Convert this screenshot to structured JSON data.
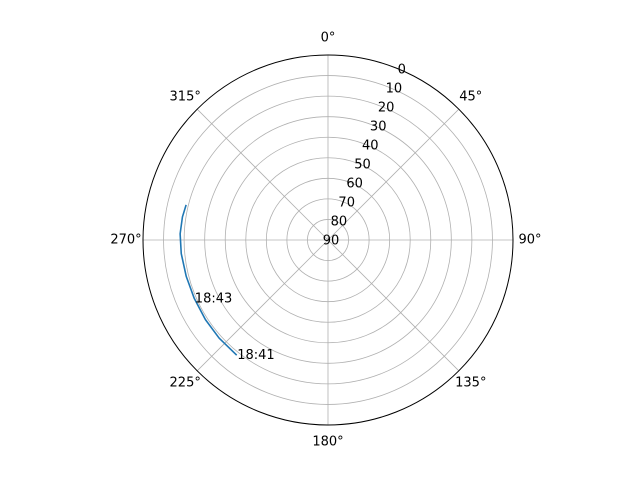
{
  "chart_data": {
    "type": "line",
    "projection": "polar",
    "theta_zero_location": "N",
    "theta_direction": "clockwise",
    "theta_ticks": [
      {
        "deg": 0,
        "label": "0°"
      },
      {
        "deg": 45,
        "label": "45°"
      },
      {
        "deg": 90,
        "label": "90°"
      },
      {
        "deg": 135,
        "label": "135°"
      },
      {
        "deg": 180,
        "label": "180°"
      },
      {
        "deg": 225,
        "label": "225°"
      },
      {
        "deg": 270,
        "label": "270°"
      },
      {
        "deg": 315,
        "label": "315°"
      }
    ],
    "r_axis": {
      "inverted": true,
      "min": 0,
      "max": 90,
      "ticks": [
        0,
        10,
        20,
        30,
        40,
        50,
        60,
        70,
        80,
        90
      ],
      "tick_labels": [
        "0",
        "10",
        "20",
        "30",
        "40",
        "50",
        "60",
        "70",
        "80",
        "90"
      ],
      "label_angle_deg": 22.5
    },
    "grid": true,
    "series": [
      {
        "color": "#1f77b4",
        "points": [
          {
            "az": 218.4,
            "el": 18.5
          },
          {
            "az": 228.0,
            "el": 18.7
          },
          {
            "az": 237.0,
            "el": 18.9
          },
          {
            "az": 246.4,
            "el": 19.0
          },
          {
            "az": 255.6,
            "el": 18.8
          },
          {
            "az": 264.7,
            "el": 18.3
          },
          {
            "az": 272.4,
            "el": 18.0
          },
          {
            "az": 279.0,
            "el": 18.3
          },
          {
            "az": 283.9,
            "el": 18.9
          }
        ]
      }
    ],
    "annotations": [
      {
        "text": "18:41",
        "az": 218.4,
        "el": 18.5
      },
      {
        "text": "18:43",
        "az": 246.4,
        "el": 19.0
      }
    ]
  }
}
